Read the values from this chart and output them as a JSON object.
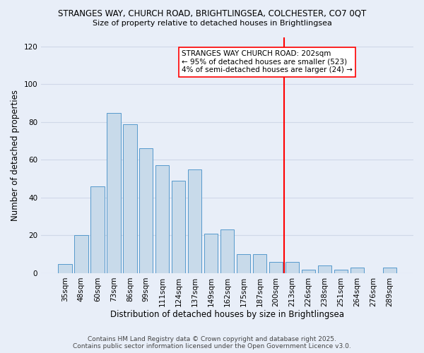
{
  "title1": "STRANGES WAY, CHURCH ROAD, BRIGHTLINGSEA, COLCHESTER, CO7 0QT",
  "title2": "Size of property relative to detached houses in Brightlingsea",
  "xlabel": "Distribution of detached houses by size in Brightlingsea",
  "ylabel": "Number of detached properties",
  "bar_labels": [
    "35sqm",
    "48sqm",
    "60sqm",
    "73sqm",
    "86sqm",
    "99sqm",
    "111sqm",
    "124sqm",
    "137sqm",
    "149sqm",
    "162sqm",
    "175sqm",
    "187sqm",
    "200sqm",
    "213sqm",
    "226sqm",
    "238sqm",
    "251sqm",
    "264sqm",
    "276sqm",
    "289sqm"
  ],
  "bar_values": [
    5,
    20,
    46,
    85,
    79,
    66,
    57,
    49,
    55,
    21,
    23,
    10,
    10,
    6,
    6,
    2,
    4,
    2,
    3,
    0,
    3
  ],
  "bar_color": "#c8daea",
  "bar_edge_color": "#5599cc",
  "vline_x_label": "200sqm",
  "vline_color": "red",
  "annotation_text": "STRANGES WAY CHURCH ROAD: 202sqm\n← 95% of detached houses are smaller (523)\n4% of semi-detached houses are larger (24) →",
  "annotation_box_color": "white",
  "annotation_border_color": "red",
  "ylim": [
    0,
    125
  ],
  "yticks": [
    0,
    20,
    40,
    60,
    80,
    100,
    120
  ],
  "footnote": "Contains HM Land Registry data © Crown copyright and database right 2025.\nContains public sector information licensed under the Open Government Licence v3.0.",
  "bg_color": "#e8eef8",
  "grid_color": "#d0d8e8",
  "title1_fontsize": 8.5,
  "title2_fontsize": 8.0,
  "axis_label_fontsize": 8.5,
  "tick_fontsize": 7.5,
  "annotation_fontsize": 7.5,
  "footnote_fontsize": 6.5
}
